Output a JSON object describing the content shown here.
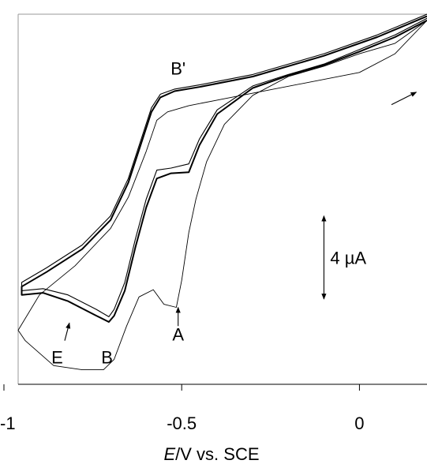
{
  "chart_data": {
    "type": "line",
    "title": "",
    "xlabel": {
      "italic": "E",
      "rest": "/V vs. SCE"
    },
    "ylabel": "",
    "xlim": [
      -0.96,
      0.19
    ],
    "ylim": [
      -11.5,
      6.3
    ],
    "x_ticks": [
      -1,
      -0.5,
      0
    ],
    "x_tick_labels": [
      "-1",
      "-0.5",
      "0"
    ],
    "grid": false,
    "frame": "top-right-left-gray",
    "scale_bar": {
      "label": "4 µA",
      "x": -0.1,
      "y_from": -7.4,
      "y_to": -3.4,
      "value_uA": 4
    },
    "annotations": [
      {
        "text": "B'",
        "x": -0.51,
        "y": 3.4
      },
      {
        "text": "A",
        "x": -0.51,
        "y": -9.4
      },
      {
        "text": "E",
        "x": -0.85,
        "y": -10.5
      },
      {
        "text": "B",
        "x": -0.71,
        "y": -10.5
      }
    ],
    "arrows": [
      {
        "name": "peak-a-arrow",
        "from": [
          -0.51,
          -8.7
        ],
        "to": [
          -0.51,
          -7.8
        ]
      },
      {
        "name": "shoulder-e-arrow",
        "from": [
          -0.829,
          -9.4
        ],
        "to": [
          -0.816,
          -8.55
        ]
      },
      {
        "name": "scan-direction-arrow",
        "from": [
          0.09,
          1.95
        ],
        "to": [
          0.16,
          2.55
        ]
      }
    ],
    "series": [
      {
        "style": "thin",
        "points": [
          [
            0.19,
            6.0
          ],
          [
            0.1,
            4.9
          ],
          [
            0.0,
            4.4
          ],
          [
            -0.1,
            3.8
          ],
          [
            -0.2,
            3.3
          ],
          [
            -0.3,
            2.4
          ],
          [
            -0.38,
            1.0
          ],
          [
            -0.43,
            -0.8
          ],
          [
            -0.46,
            -2.6
          ],
          [
            -0.48,
            -4.2
          ],
          [
            -0.5,
            -6.5
          ],
          [
            -0.515,
            -7.8
          ],
          [
            -0.55,
            -7.65
          ],
          [
            -0.58,
            -6.95
          ],
          [
            -0.62,
            -7.3
          ],
          [
            -0.655,
            -8.7
          ],
          [
            -0.69,
            -10.3
          ],
          [
            -0.72,
            -10.8
          ],
          [
            -0.78,
            -10.8
          ],
          [
            -0.86,
            -10.6
          ],
          [
            -0.94,
            -9.4
          ],
          [
            -0.96,
            -8.9
          ],
          [
            -0.9,
            -7.2
          ],
          [
            -0.8,
            -5.8
          ],
          [
            -0.7,
            -4.0
          ],
          [
            -0.65,
            -2.5
          ],
          [
            -0.6,
            -0.3
          ],
          [
            -0.57,
            1.2
          ],
          [
            -0.54,
            1.6
          ],
          [
            -0.48,
            1.9
          ],
          [
            -0.3,
            2.5
          ],
          [
            0.0,
            3.5
          ],
          [
            0.1,
            4.4
          ],
          [
            0.19,
            6.0
          ]
        ]
      },
      {
        "style": "thick",
        "points": [
          [
            0.19,
            6.0
          ],
          [
            0.1,
            5.2
          ],
          [
            0.0,
            4.5
          ],
          [
            -0.1,
            3.85
          ],
          [
            -0.2,
            3.35
          ],
          [
            -0.3,
            2.75
          ],
          [
            -0.4,
            1.5
          ],
          [
            -0.45,
            0.0
          ],
          [
            -0.48,
            -1.3
          ],
          [
            -0.53,
            -1.35
          ],
          [
            -0.57,
            -1.6
          ],
          [
            -0.6,
            -3.0
          ],
          [
            -0.63,
            -4.9
          ],
          [
            -0.66,
            -7.0
          ],
          [
            -0.69,
            -8.2
          ],
          [
            -0.705,
            -8.5
          ],
          [
            -0.74,
            -8.2
          ],
          [
            -0.82,
            -7.5
          ],
          [
            -0.89,
            -7.1
          ],
          [
            -0.95,
            -7.2
          ],
          [
            -0.95,
            -6.8
          ],
          [
            -0.88,
            -6.1
          ],
          [
            -0.78,
            -5.0
          ],
          [
            -0.7,
            -3.6
          ],
          [
            -0.65,
            -1.8
          ],
          [
            -0.61,
            0.3
          ],
          [
            -0.585,
            1.6
          ],
          [
            -0.56,
            2.3
          ],
          [
            -0.52,
            2.6
          ],
          [
            -0.45,
            2.8
          ],
          [
            -0.3,
            3.3
          ],
          [
            -0.1,
            4.3
          ],
          [
            0.05,
            5.2
          ],
          [
            0.19,
            6.2
          ]
        ]
      },
      {
        "style": "mid",
        "points": [
          [
            0.19,
            6.1
          ],
          [
            0.1,
            5.3
          ],
          [
            0.0,
            4.6
          ],
          [
            -0.1,
            3.9
          ],
          [
            -0.2,
            3.4
          ],
          [
            -0.3,
            2.85
          ],
          [
            -0.4,
            1.7
          ],
          [
            -0.45,
            0.3
          ],
          [
            -0.48,
            -0.9
          ],
          [
            -0.53,
            -1.1
          ],
          [
            -0.57,
            -1.2
          ],
          [
            -0.6,
            -2.6
          ],
          [
            -0.63,
            -4.5
          ],
          [
            -0.66,
            -6.6
          ],
          [
            -0.69,
            -7.9
          ],
          [
            -0.705,
            -8.25
          ],
          [
            -0.74,
            -7.9
          ],
          [
            -0.82,
            -7.2
          ],
          [
            -0.89,
            -6.9
          ],
          [
            -0.95,
            -7.0
          ],
          [
            -0.95,
            -6.6
          ],
          [
            -0.88,
            -5.9
          ],
          [
            -0.78,
            -4.8
          ],
          [
            -0.7,
            -3.4
          ],
          [
            -0.65,
            -1.6
          ],
          [
            -0.61,
            0.5
          ],
          [
            -0.585,
            1.8
          ],
          [
            -0.56,
            2.45
          ],
          [
            -0.52,
            2.7
          ],
          [
            -0.45,
            2.9
          ],
          [
            -0.3,
            3.4
          ],
          [
            -0.1,
            4.4
          ],
          [
            0.05,
            5.3
          ],
          [
            0.19,
            6.3
          ]
        ]
      }
    ]
  }
}
